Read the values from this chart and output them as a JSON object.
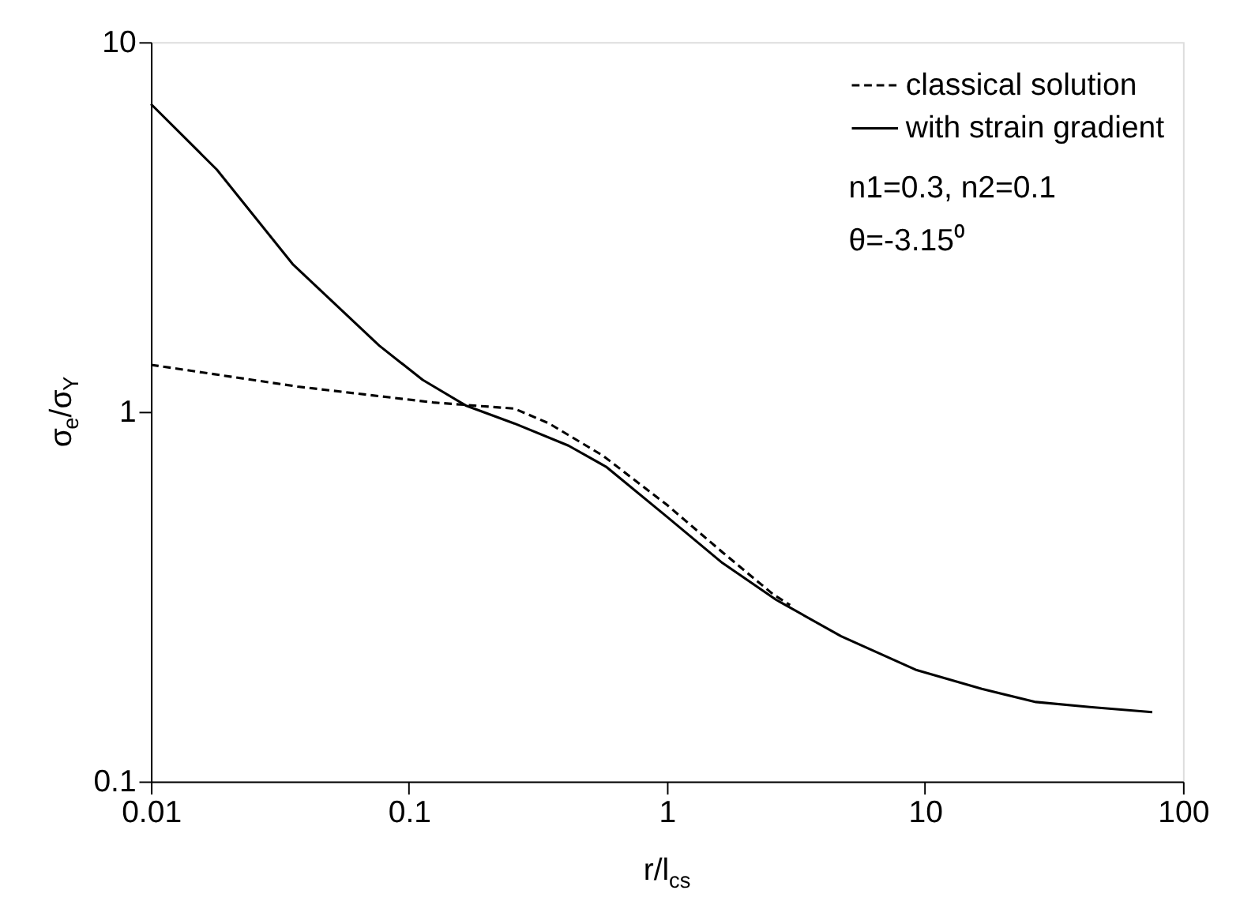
{
  "chart_data": {
    "type": "line",
    "xlabel": "r/l$_{cs}$",
    "ylabel": "σ$_{e}$/σ$_{Y}$",
    "log": "xy",
    "xlim": [
      0.01,
      100
    ],
    "ylim": [
      0.1,
      10
    ],
    "xticks": [
      0.01,
      0.1,
      1,
      10,
      100
    ],
    "yticks": [
      0.1,
      1,
      10
    ],
    "grid": false,
    "legend": "top right",
    "marker": "none",
    "series": [
      {
        "name": "classical solution",
        "color": "#000000",
        "line_style": "dashed",
        "x": [
          0.01,
          0.037,
          0.124,
          0.256,
          0.349,
          0.566,
          1.0,
          1.64,
          2.59,
          3.0
        ],
        "values": [
          1.34,
          1.17,
          1.06,
          1.02,
          0.93,
          0.76,
          0.56,
          0.417,
          0.32,
          0.3
        ]
      },
      {
        "name": "with strain gradient",
        "color": "#000000",
        "line_style": "solid",
        "x": [
          0.01,
          0.018,
          0.0354,
          0.0767,
          0.113,
          0.166,
          0.256,
          0.415,
          0.581,
          1.0,
          1.64,
          2.65,
          4.73,
          9.29,
          16.6,
          26.9,
          43.5,
          76.0
        ],
        "values": [
          6.8,
          4.52,
          2.51,
          1.51,
          1.22,
          1.04,
          0.93,
          0.81,
          0.71,
          0.52,
          0.39,
          0.31,
          0.247,
          0.2,
          0.178,
          0.164,
          0.159,
          0.154
        ]
      }
    ],
    "annotations": [
      "n1=0.3,  n2=0.1",
      "θ=-3.15⁰"
    ]
  }
}
